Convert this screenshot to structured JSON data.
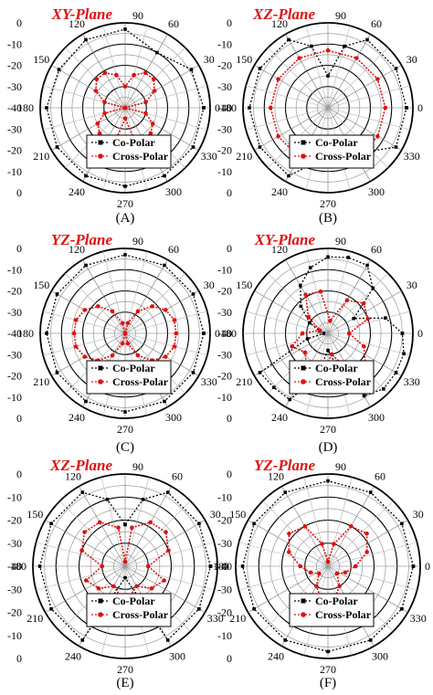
{
  "chart_data": [
    {
      "type": "polar",
      "panel_label": "(A)",
      "title": "XY-Plane",
      "r_ticks": [
        "0",
        "-10",
        "-20",
        "-30",
        "-40",
        "-30",
        "-20",
        "-10",
        "0"
      ],
      "rlim": [
        -40,
        0
      ],
      "angle_ticks": [
        "90",
        "60",
        "30",
        "0",
        "330",
        "300",
        "270",
        "240",
        "210",
        "180",
        "150",
        "120"
      ],
      "legend": [
        "Co-Polar",
        "Cross-Polar"
      ],
      "series": [
        {
          "name": "Co-Polar",
          "color": "#000000",
          "angles": [
            0,
            30,
            60,
            90,
            120,
            150,
            180,
            210,
            240,
            270,
            300,
            330,
            360
          ],
          "values": [
            -3,
            -4,
            -10,
            -3,
            -3,
            -4,
            -3,
            -3,
            -3,
            -3,
            -3,
            -3,
            -3
          ]
        },
        {
          "name": "Cross-Polar",
          "color": "#e01010",
          "angles": [
            0,
            15,
            30,
            45,
            60,
            75,
            90,
            105,
            120,
            135,
            150,
            165,
            180,
            195,
            210,
            225,
            240,
            255,
            270,
            285,
            300,
            315,
            330,
            345,
            360
          ],
          "values": [
            -40,
            -30,
            -24,
            -21,
            -21,
            -24,
            -30,
            -24,
            -21,
            -21,
            -24,
            -30,
            -40,
            -30,
            -25,
            -23,
            -23,
            -26,
            -35,
            -26,
            -23,
            -23,
            -25,
            -30,
            -40
          ]
        }
      ]
    },
    {
      "type": "polar",
      "panel_label": "(B)",
      "title": "XZ-Plane",
      "r_ticks": [
        "0",
        "-10",
        "-20",
        "-30",
        "-40",
        "-30",
        "-20",
        "-10",
        "0"
      ],
      "rlim": [
        -40,
        0
      ],
      "angle_ticks": [
        "90",
        "60",
        "30",
        "0",
        "330",
        "300",
        "270",
        "240",
        "210",
        "180",
        "150",
        "120"
      ],
      "legend": [
        "Co-Polar",
        "Cross-Polar"
      ],
      "series": [
        {
          "name": "Co-Polar",
          "color": "#000000",
          "angles": [
            0,
            30,
            60,
            75,
            90,
            105,
            120,
            150,
            180,
            210,
            240,
            270,
            300,
            330,
            360
          ],
          "values": [
            -3,
            -3,
            -3,
            -10,
            -25,
            -10,
            -3,
            -3,
            -3,
            -3,
            -3,
            -17,
            -15,
            -3,
            -3
          ]
        },
        {
          "name": "Cross-Polar",
          "color": "#e01010",
          "angles": [
            0,
            30,
            60,
            90,
            120,
            150,
            180,
            210,
            240,
            270,
            300,
            330,
            360
          ],
          "values": [
            -13,
            -13,
            -13,
            -13,
            -13,
            -13,
            -13,
            -13,
            -13,
            -16,
            -13,
            -13,
            -13
          ]
        }
      ]
    },
    {
      "type": "polar",
      "panel_label": "(C)",
      "title": "YZ-Plane",
      "r_ticks": [
        "0",
        "-10",
        "-20",
        "-30",
        "-40",
        "-30",
        "-20",
        "-10",
        "0"
      ],
      "rlim": [
        -40,
        0
      ],
      "angle_ticks": [
        "90",
        "60",
        "30",
        "0",
        "330",
        "300",
        "270",
        "240",
        "210",
        "180",
        "150",
        "120"
      ],
      "legend": [
        "Co-Polar",
        "Cross-Polar"
      ],
      "series": [
        {
          "name": "Co-Polar",
          "color": "#000000",
          "angles": [
            0,
            30,
            60,
            90,
            120,
            150,
            180,
            210,
            240,
            270,
            300,
            330,
            360
          ],
          "values": [
            -3,
            -3,
            -3,
            -3,
            -3,
            -3,
            -3,
            -3,
            -3,
            -3,
            -3,
            -3,
            -3
          ]
        },
        {
          "name": "Cross-Polar",
          "color": "#e01010",
          "angles": [
            0,
            15,
            30,
            45,
            60,
            75,
            90,
            105,
            120,
            135,
            150,
            165,
            180,
            195,
            210,
            225,
            240,
            255,
            270,
            285,
            300,
            315,
            330,
            345,
            360
          ],
          "values": [
            -16,
            -16,
            -18,
            -22,
            -28,
            -35,
            -40,
            -35,
            -28,
            -22,
            -18,
            -16,
            -16,
            -16,
            -18,
            -22,
            -28,
            -35,
            -40,
            -35,
            -28,
            -22,
            -18,
            -16,
            -16
          ]
        }
      ]
    },
    {
      "type": "polar",
      "panel_label": "(D)",
      "title": "XY-Plane",
      "r_ticks": [
        "0",
        "-10",
        "-20",
        "-30",
        "-40",
        "-30",
        "-20",
        "-10",
        "0"
      ],
      "rlim": [
        -40,
        0
      ],
      "angle_ticks": [
        "90",
        "60",
        "30",
        "0",
        "330",
        "300",
        "270",
        "240",
        "210",
        "180",
        "150",
        "120"
      ],
      "legend": [
        "Co-Polar",
        "Cross-Polar"
      ],
      "series": [
        {
          "name": "Co-Polar",
          "color": "#000000",
          "angles": [
            0,
            15,
            30,
            45,
            60,
            75,
            90,
            105,
            120,
            135,
            150,
            165,
            180,
            195,
            210,
            225,
            240,
            255,
            270,
            285,
            300,
            315,
            330,
            345,
            360
          ],
          "values": [
            -5,
            -12,
            -26,
            -10,
            -3,
            -3,
            -4,
            -8,
            -14,
            -22,
            -30,
            -36,
            -38,
            -30,
            -3,
            -4,
            -4,
            -18,
            -32,
            -24,
            -6,
            -3,
            -3,
            -3,
            -5
          ]
        },
        {
          "name": "Cross-Polar",
          "color": "#e01010",
          "angles": [
            0,
            20,
            40,
            60,
            80,
            100,
            120,
            140,
            160,
            180,
            200,
            220,
            240,
            260,
            280,
            300,
            320,
            340,
            360
          ],
          "values": [
            -30,
            -20,
            -18,
            -22,
            -34,
            -20,
            -19,
            -28,
            -36,
            -28,
            -22,
            -26,
            -20,
            -18,
            -30,
            -19,
            -17,
            -22,
            -30
          ]
        }
      ]
    },
    {
      "type": "polar",
      "panel_label": "(E)",
      "title": "XZ-Plane",
      "r_ticks": [
        "0",
        "-10",
        "-20",
        "-30",
        "-40",
        "-30",
        "-20",
        "-10",
        "0"
      ],
      "rlim": [
        -40,
        0
      ],
      "angle_ticks": [
        "90",
        "60",
        "30",
        "0",
        "330",
        "300",
        "270",
        "240",
        "210",
        "180",
        "150",
        "120"
      ],
      "legend": [
        "Co-Polar",
        "Cross-Polar"
      ],
      "series": [
        {
          "name": "Co-Polar",
          "color": "#000000",
          "angles": [
            0,
            30,
            60,
            75,
            90,
            105,
            120,
            150,
            180,
            210,
            240,
            270,
            300,
            330,
            360
          ],
          "values": [
            -3,
            -3,
            -3,
            -10,
            -22,
            -10,
            -3,
            -3,
            -3,
            -3,
            -3,
            -35,
            -3,
            -3,
            -3
          ]
        },
        {
          "name": "Cross-Polar",
          "color": "#e01010",
          "angles": [
            0,
            20,
            40,
            60,
            80,
            90,
            100,
            120,
            140,
            160,
            180,
            200,
            220,
            240,
            260,
            270,
            280,
            300,
            320,
            340,
            360
          ],
          "values": [
            -30,
            -20,
            -17,
            -18,
            -23,
            -38,
            -23,
            -18,
            -17,
            -20,
            -30,
            -22,
            -25,
            -30,
            -27,
            -25,
            -27,
            -30,
            -25,
            -22,
            -30
          ]
        }
      ]
    },
    {
      "type": "polar",
      "panel_label": "(F)",
      "title": "YZ-Plane",
      "r_ticks": [
        "0",
        "-10",
        "-20",
        "-30",
        "-40",
        "-30",
        "-20",
        "-10",
        "0"
      ],
      "rlim": [
        -40,
        0
      ],
      "angle_ticks": [
        "90",
        "60",
        "30",
        "0",
        "330",
        "300",
        "270",
        "240",
        "210",
        "180",
        "150",
        "120"
      ],
      "legend": [
        "Co-Polar",
        "Cross-Polar"
      ],
      "series": [
        {
          "name": "Co-Polar",
          "color": "#000000",
          "angles": [
            0,
            30,
            60,
            90,
            120,
            150,
            180,
            210,
            240,
            270,
            300,
            330,
            360
          ],
          "values": [
            -3,
            -3,
            -3,
            -3,
            -3,
            -3,
            -3,
            -3,
            -3,
            -3,
            -3,
            -3,
            -3
          ]
        },
        {
          "name": "Cross-Polar",
          "color": "#e01010",
          "angles": [
            0,
            20,
            40,
            60,
            75,
            90,
            105,
            120,
            140,
            160,
            180,
            200,
            220,
            240,
            260,
            280,
            300,
            320,
            340,
            360
          ],
          "values": [
            -28,
            -22,
            -18,
            -20,
            -30,
            -38,
            -30,
            -20,
            -18,
            -22,
            -28,
            -32,
            -35,
            -30,
            -25,
            -25,
            -30,
            -35,
            -32,
            -28
          ]
        }
      ]
    }
  ]
}
